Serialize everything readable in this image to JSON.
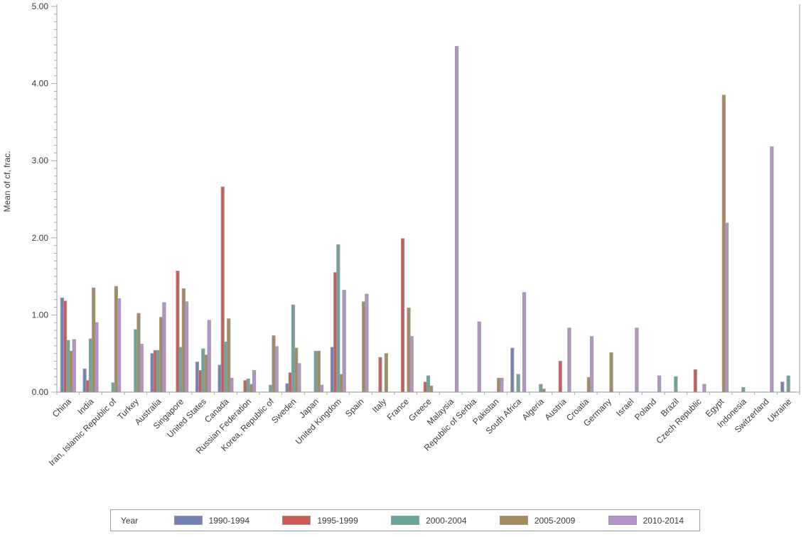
{
  "y_axis": {
    "title": "Mean of cf, frac.",
    "tick_labels": [
      "0.00",
      "1.00",
      "2.00",
      "3.00",
      "4.00",
      "5.00"
    ]
  },
  "chart_data": {
    "type": "bar",
    "title": "",
    "xlabel": "",
    "ylabel": "Mean of cf, frac.",
    "ylim": [
      0,
      5
    ],
    "y_major_step": 1.0,
    "y_minor_step": 0.1,
    "grid": false,
    "legend_title": "Year",
    "legend_position": "bottom",
    "categories": [
      "China",
      "India",
      "Iran, Islamic Republic of",
      "Turkey",
      "Australia",
      "Singapore",
      "United States",
      "Canada",
      "Russian Federation",
      "Korea, Republic of",
      "Sweden",
      "Japan",
      "United Kingdom",
      "Spain",
      "Italy",
      "France",
      "Greece",
      "Malaysia",
      "Republic of Serbia",
      "Pakistan",
      "South Africa",
      "Algeria",
      "Austria",
      "Croatia",
      "Germany",
      "Israel",
      "Poland",
      "Brazil",
      "Czech Republic",
      "Egypt",
      "Indonesia",
      "Switzerland",
      "Ukraine"
    ],
    "series": [
      {
        "name": "1990-1994",
        "color": "#7381b6",
        "values": [
          1.22,
          0.3,
          null,
          null,
          0.5,
          null,
          0.39,
          0.35,
          null,
          null,
          0.11,
          null,
          0.58,
          null,
          null,
          null,
          null,
          null,
          null,
          null,
          0.57,
          null,
          null,
          null,
          null,
          null,
          null,
          null,
          null,
          null,
          null,
          null,
          0.13
        ]
      },
      {
        "name": "1995-1999",
        "color": "#cb5a56",
        "values": [
          1.18,
          0.15,
          null,
          null,
          0.54,
          1.57,
          0.28,
          2.66,
          0.15,
          null,
          0.25,
          null,
          1.55,
          null,
          0.45,
          1.99,
          0.13,
          null,
          null,
          null,
          null,
          null,
          0.4,
          null,
          null,
          null,
          null,
          null,
          0.29,
          null,
          null,
          null,
          null
        ]
      },
      {
        "name": "2000-2004",
        "color": "#69a49d",
        "values": [
          0.67,
          0.69,
          0.12,
          0.81,
          0.54,
          0.58,
          0.56,
          0.65,
          0.17,
          0.09,
          1.13,
          0.53,
          1.91,
          null,
          null,
          null,
          0.21,
          null,
          null,
          null,
          0.23,
          0.1,
          null,
          null,
          null,
          null,
          null,
          0.2,
          null,
          null,
          0.06,
          null,
          0.21
        ]
      },
      {
        "name": "2005-2009",
        "color": "#a68a5d",
        "values": [
          0.53,
          1.35,
          1.37,
          1.02,
          0.97,
          1.34,
          0.48,
          0.95,
          0.1,
          0.73,
          0.57,
          0.53,
          0.23,
          1.17,
          0.5,
          1.09,
          0.08,
          null,
          null,
          0.18,
          null,
          0.04,
          null,
          0.19,
          0.51,
          null,
          null,
          null,
          null,
          3.85,
          null,
          null,
          null
        ]
      },
      {
        "name": "2010-2014",
        "color": "#b791c9",
        "values": [
          0.68,
          0.9,
          1.21,
          0.62,
          1.16,
          1.17,
          0.93,
          0.18,
          0.28,
          0.59,
          0.37,
          0.09,
          1.32,
          1.27,
          null,
          0.72,
          null,
          4.48,
          0.91,
          0.18,
          1.29,
          null,
          0.83,
          0.72,
          null,
          0.83,
          0.21,
          null,
          0.1,
          2.19,
          null,
          3.18,
          null
        ]
      }
    ]
  }
}
